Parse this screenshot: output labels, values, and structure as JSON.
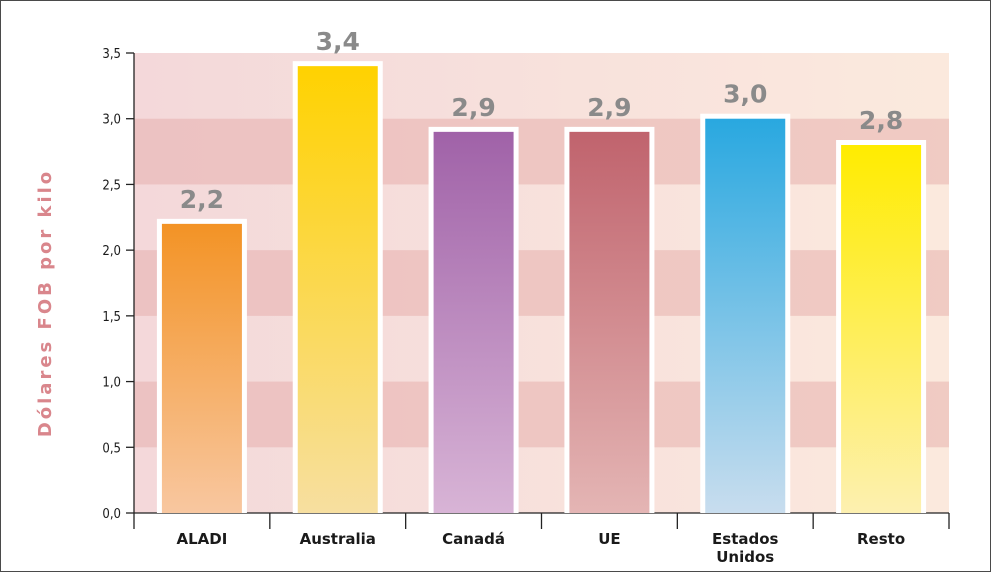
{
  "chart_data": {
    "type": "bar",
    "ylabel": "Dólares FOB por kilo",
    "ylim": [
      0,
      3.5
    ],
    "yticks": [
      "0,0",
      "0,5",
      "1,0",
      "1,5",
      "2,0",
      "2,5",
      "3,0",
      "3,5"
    ],
    "categories": [
      [
        "ALADI"
      ],
      [
        "Australia"
      ],
      [
        "Canadá"
      ],
      [
        "UE"
      ],
      [
        "Estados",
        "Unidos"
      ],
      [
        "Resto"
      ]
    ],
    "values": [
      2.2,
      3.4,
      2.9,
      2.9,
      3.0,
      2.8
    ],
    "value_labels": [
      "2,2",
      "3,4",
      "2,9",
      "2,9",
      "3,0",
      "2,8"
    ],
    "bar_colors": [
      [
        "#f39325",
        "#f8c7a0"
      ],
      [
        "#ffd200",
        "#f7dfa0"
      ],
      [
        "#a062a8",
        "#d8b4d6"
      ],
      [
        "#c0636d",
        "#e4b5b4"
      ],
      [
        "#29a8e0",
        "#c8ddee"
      ],
      [
        "#ffec00",
        "#fdf0b0"
      ]
    ],
    "grid": true
  }
}
